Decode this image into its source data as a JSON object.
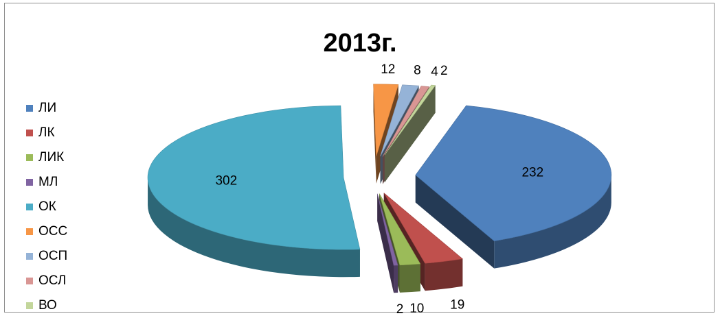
{
  "chart_data": {
    "type": "pie",
    "title": "2013г.",
    "legend_position": "left",
    "categories": [
      "ЛИ",
      "ЛК",
      "ЛИК",
      "МЛ",
      "ОК",
      "ОСС",
      "ОСП",
      "ОСЛ",
      "ВО"
    ],
    "values": [
      232,
      19,
      10,
      2,
      302,
      12,
      8,
      4,
      2
    ],
    "colors": [
      "#4f81bd",
      "#c0504d",
      "#9bbb59",
      "#8064a2",
      "#4bacc6",
      "#f79646",
      "#95b3d7",
      "#d99694",
      "#c3d69b"
    ],
    "data_labels": [
      "232",
      "19",
      "10",
      "2",
      "302",
      "12",
      "8",
      "4",
      "2"
    ]
  }
}
